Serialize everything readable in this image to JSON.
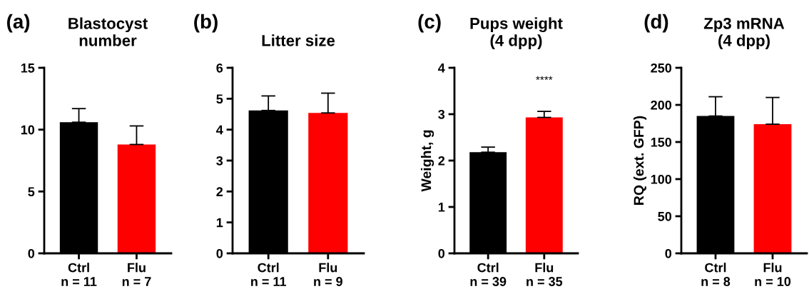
{
  "chart_data": [
    {
      "type": "bar",
      "title": "Blastocyst\nnumber",
      "categories": [
        "Ctrl\nn = 11",
        "Flu\nn = 7"
      ],
      "values": [
        10.6,
        8.8
      ],
      "colors": [
        "#000000",
        "#ff0000"
      ],
      "errors": [
        [
          10.6,
          11.7
        ],
        [
          8.8,
          10.3
        ]
      ],
      "ylim": [
        0,
        15
      ],
      "yticks": [
        0,
        5,
        10,
        15
      ],
      "grid": false,
      "annotations": [
        "(a)"
      ]
    },
    {
      "type": "bar",
      "title": "Litter size",
      "categories": [
        "Ctrl\nn = 11",
        "Flu\nn = 9"
      ],
      "values": [
        4.62,
        4.54
      ],
      "colors": [
        "#000000",
        "#ff0000"
      ],
      "errors": [
        [
          4.62,
          5.09
        ],
        [
          4.54,
          5.18
        ]
      ],
      "ylim": [
        0,
        6
      ],
      "yticks": [
        0,
        1,
        2,
        3,
        4,
        5,
        6
      ],
      "grid": false,
      "annotations": [
        "(b)"
      ]
    },
    {
      "type": "bar",
      "title": "Pups weight\n(4 dpp)",
      "ylabel": "Weight, g",
      "categories": [
        "Ctrl\nn = 39",
        "Flu\nn = 35"
      ],
      "values": [
        2.18,
        2.93
      ],
      "colors": [
        "#000000",
        "#ff0000"
      ],
      "errors": [
        [
          2.18,
          2.29
        ],
        [
          2.93,
          3.06
        ]
      ],
      "ylim": [
        0,
        4
      ],
      "yticks": [
        0,
        1,
        2,
        3,
        4
      ],
      "grid": false,
      "annotations": [
        "(c)",
        "****"
      ]
    },
    {
      "type": "bar",
      "title": "Zp3 mRNA\n(4 dpp)",
      "ylabel": "RQ (ext. GFP)",
      "categories": [
        "Ctrl\nn = 8",
        "Flu\nn = 10"
      ],
      "values": [
        185,
        174
      ],
      "colors": [
        "#000000",
        "#ff0000"
      ],
      "errors": [
        [
          185,
          211
        ],
        [
          174,
          210
        ]
      ],
      "ylim": [
        0,
        250
      ],
      "yticks": [
        0,
        50,
        100,
        150,
        200,
        250
      ],
      "grid": false,
      "annotations": [
        "(d)"
      ]
    }
  ]
}
